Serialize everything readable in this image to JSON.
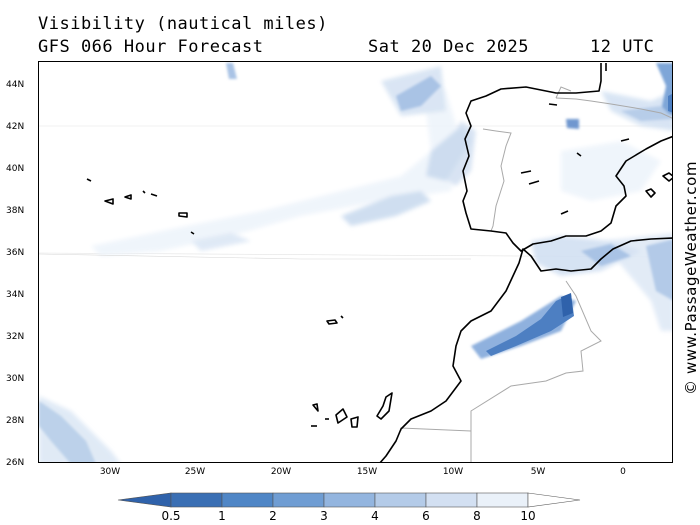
{
  "header": {
    "title": "Visibility (nautical miles)",
    "forecast": "GFS 066 Hour Forecast",
    "date": "Sat 20 Dec 2025",
    "time": "12 UTC"
  },
  "map": {
    "lat_labels": [
      "44N",
      "42N",
      "40N",
      "38N",
      "36N",
      "34N",
      "32N",
      "30N",
      "28N",
      "26N"
    ],
    "lon_labels": [
      "30W",
      "25W",
      "20W",
      "15W",
      "10W",
      "5W",
      "0"
    ]
  },
  "colorbar": {
    "labels": [
      "0.5",
      "1",
      "2",
      "3",
      "4",
      "6",
      "8",
      "10"
    ],
    "colors": [
      "#3a6fb4",
      "#4f86c6",
      "#6f9dd3",
      "#93b5df",
      "#b4cbe8",
      "#d3e0f2",
      "#eaf1f9",
      "#ffffff"
    ]
  },
  "credit": "© www.PassageWeather.com"
}
